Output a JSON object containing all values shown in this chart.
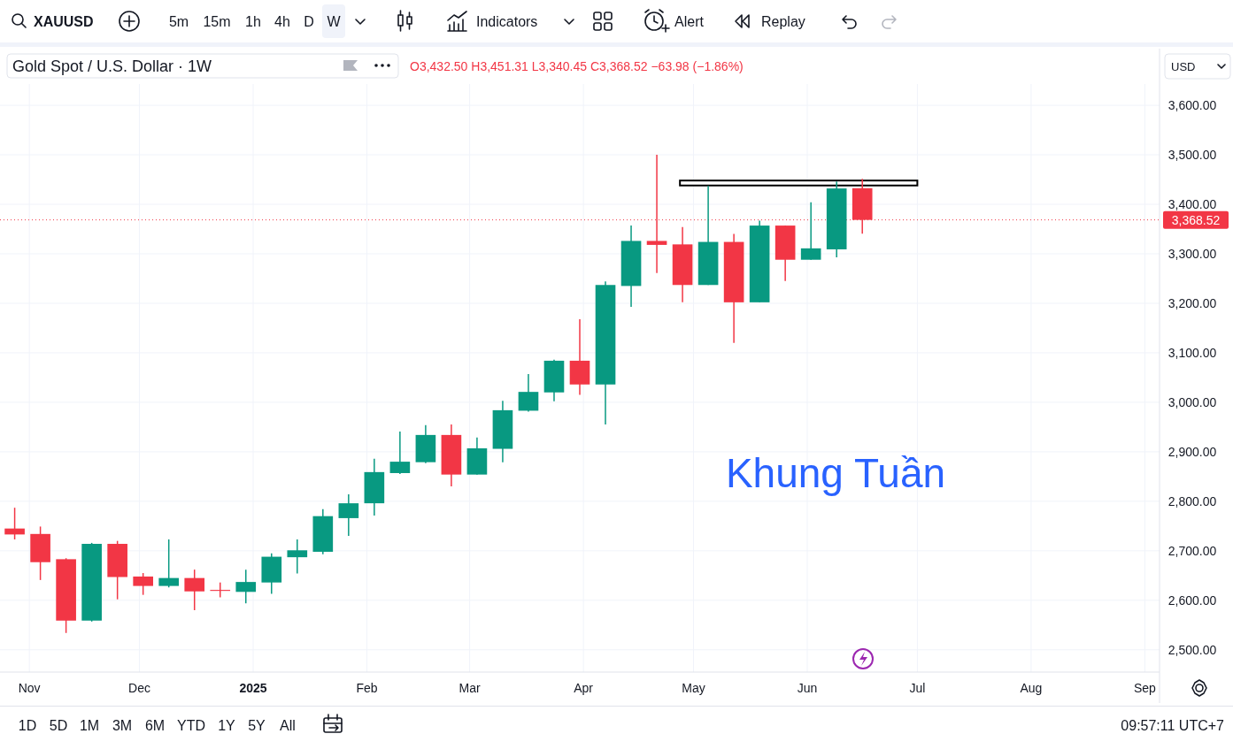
{
  "chart_data": {
    "type": "candlestick",
    "title": "Gold Spot / U.S. Dollar · 1W",
    "subtitle": "O3,432.50 H3,451.31 L3,340.45 C3,368.52 −63.98 (−1.86%)",
    "x": [
      "2024-10-28",
      "2024-11-04",
      "2024-11-11",
      "2024-11-18",
      "2024-11-25",
      "2024-12-02",
      "2024-12-09",
      "2024-12-16",
      "2024-12-23",
      "2024-12-30",
      "2025-01-06",
      "2025-01-13",
      "2025-01-20",
      "2025-01-27",
      "2025-02-03",
      "2025-02-10",
      "2025-02-17",
      "2025-02-24",
      "2025-03-03",
      "2025-03-10",
      "2025-03-17",
      "2025-03-24",
      "2025-03-31",
      "2025-04-07",
      "2025-04-14",
      "2025-04-21",
      "2025-04-28",
      "2025-05-05",
      "2025-05-12",
      "2025-05-19",
      "2025-05-26",
      "2025-06-02",
      "2025-06-09",
      "2025-06-16"
    ],
    "ohlc": [
      [
        2745,
        2787,
        2723,
        2733
      ],
      [
        2734,
        2749,
        2641,
        2677
      ],
      [
        2683,
        2685,
        2534,
        2559
      ],
      [
        2559,
        2716,
        2557,
        2714
      ],
      [
        2714,
        2720,
        2602,
        2647
      ],
      [
        2648,
        2655,
        2611,
        2629
      ],
      [
        2629,
        2723,
        2626,
        2645
      ],
      [
        2645,
        2662,
        2580,
        2618
      ],
      [
        2621,
        2636,
        2606,
        2619
      ],
      [
        2617,
        2662,
        2594,
        2637
      ],
      [
        2636,
        2695,
        2613,
        2688
      ],
      [
        2687,
        2723,
        2654,
        2701
      ],
      [
        2698,
        2784,
        2693,
        2770
      ],
      [
        2766,
        2814,
        2730,
        2796
      ],
      [
        2796,
        2886,
        2771,
        2859
      ],
      [
        2857,
        2941,
        2855,
        2880
      ],
      [
        2879,
        2954,
        2877,
        2934
      ],
      [
        2934,
        2955,
        2830,
        2854
      ],
      [
        2854,
        2929,
        2854,
        2907
      ],
      [
        2906,
        3003,
        2879,
        2984
      ],
      [
        2983,
        3057,
        2981,
        3021
      ],
      [
        3020,
        3086,
        3002,
        3084
      ],
      [
        3084,
        3168,
        3015,
        3036
      ],
      [
        3036,
        3244,
        2955,
        3237
      ],
      [
        3235,
        3357,
        3193,
        3326
      ],
      [
        3326,
        3500,
        3261,
        3318
      ],
      [
        3319,
        3354,
        3202,
        3237
      ],
      [
        3237,
        3437,
        3237,
        3324
      ],
      [
        3324,
        3340,
        3120,
        3202
      ],
      [
        3202,
        3367,
        3202,
        3357
      ],
      [
        3357,
        3357,
        3245,
        3288
      ],
      [
        3288,
        3404,
        3288,
        3311
      ],
      [
        3309,
        3446,
        3293,
        3432
      ],
      [
        3432.5,
        3451.31,
        3340.45,
        3368.52
      ]
    ],
    "colors": [
      "#f23645",
      "#f23645",
      "#f23645",
      "#089981",
      "#f23645",
      "#f23645",
      "#089981",
      "#f23645",
      "#f23645",
      "#089981",
      "#089981",
      "#089981",
      "#089981",
      "#089981",
      "#089981",
      "#089981",
      "#089981",
      "#f23645",
      "#089981",
      "#089981",
      "#089981",
      "#089981",
      "#f23645",
      "#089981",
      "#089981",
      "#f23645",
      "#f23645",
      "#089981",
      "#f23645",
      "#089981",
      "#f23645",
      "#089981",
      "#089981",
      "#f23645"
    ],
    "xlim": [
      "2024-10-24",
      "2025-09-05"
    ],
    "xticks": [
      {
        "value": "2024-11-01",
        "label": "Nov"
      },
      {
        "value": "2024-12-01",
        "label": "Dec"
      },
      {
        "value": "2025-01-01",
        "label": "2025"
      },
      {
        "value": "2025-02-01",
        "label": "Feb"
      },
      {
        "value": "2025-03-01",
        "label": "Mar"
      },
      {
        "value": "2025-04-01",
        "label": "Apr"
      },
      {
        "value": "2025-05-01",
        "label": "May"
      },
      {
        "value": "2025-06-01",
        "label": "Jun"
      },
      {
        "value": "2025-07-01",
        "label": "Jul"
      },
      {
        "value": "2025-08-01",
        "label": "Aug"
      },
      {
        "value": "2025-09-01",
        "label": "Sep"
      }
    ],
    "ylim": [
      2455,
      3643
    ],
    "yticks": [
      {
        "value": 2500,
        "label": "2,500.00"
      },
      {
        "value": 2600,
        "label": "2,600.00"
      },
      {
        "value": 2700,
        "label": "2,700.00"
      },
      {
        "value": 2800,
        "label": "2,800.00"
      },
      {
        "value": 2900,
        "label": "2,900.00"
      },
      {
        "value": 3000,
        "label": "3,000.00"
      },
      {
        "value": 3100,
        "label": "3,100.00"
      },
      {
        "value": 3200,
        "label": "3,200.00"
      },
      {
        "value": 3300,
        "label": "3,300.00"
      },
      {
        "value": 3400,
        "label": "3,400.00"
      },
      {
        "value": 3500,
        "label": "3,500.00"
      },
      {
        "value": 3600,
        "label": "3,600.00"
      }
    ],
    "grid": true,
    "ref_lines": [
      {
        "axis": "y",
        "value": 3368.52,
        "label": "3,368.52",
        "color": "#f23645",
        "line_style": "dotted"
      }
    ],
    "bands": [
      {
        "axis": "y",
        "from": 3438,
        "to": 3448,
        "color": "#ffffff"
      }
    ],
    "annotations": [
      "XAUUSD",
      "5m",
      "15m",
      "1h",
      "4h",
      "D",
      "W",
      "Indicators",
      "Alert",
      "Replay",
      "USD",
      "1D",
      "5D",
      "1M",
      "3M",
      "6M",
      "YTD",
      "1Y",
      "5Y",
      "All",
      "09:57:11 UTC+7",
      "Khung Tuần"
    ]
  }
}
